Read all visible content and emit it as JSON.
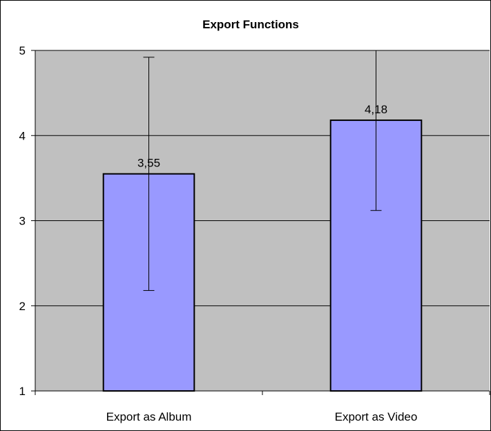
{
  "chart_data": {
    "type": "bar",
    "title": "Export Functions",
    "xlabel": "",
    "ylabel": "",
    "categories": [
      "Export as Album",
      "Export as Video"
    ],
    "values": [
      3.55,
      4.18
    ],
    "data_labels": [
      "3,55",
      "4,18"
    ],
    "error_bars": [
      {
        "low": 2.18,
        "high": 4.92
      },
      {
        "low": 3.12,
        "high": 5.24
      }
    ],
    "ylim": [
      1,
      5
    ],
    "yticks": [
      1,
      2,
      3,
      4,
      5
    ],
    "grid": true,
    "legend": "none",
    "colors": {
      "bar_fill": "#9999ff",
      "bar_stroke": "#000000",
      "plot_background": "#c0c0c0",
      "gridline": "#000000",
      "error_bar": "#000000"
    }
  }
}
